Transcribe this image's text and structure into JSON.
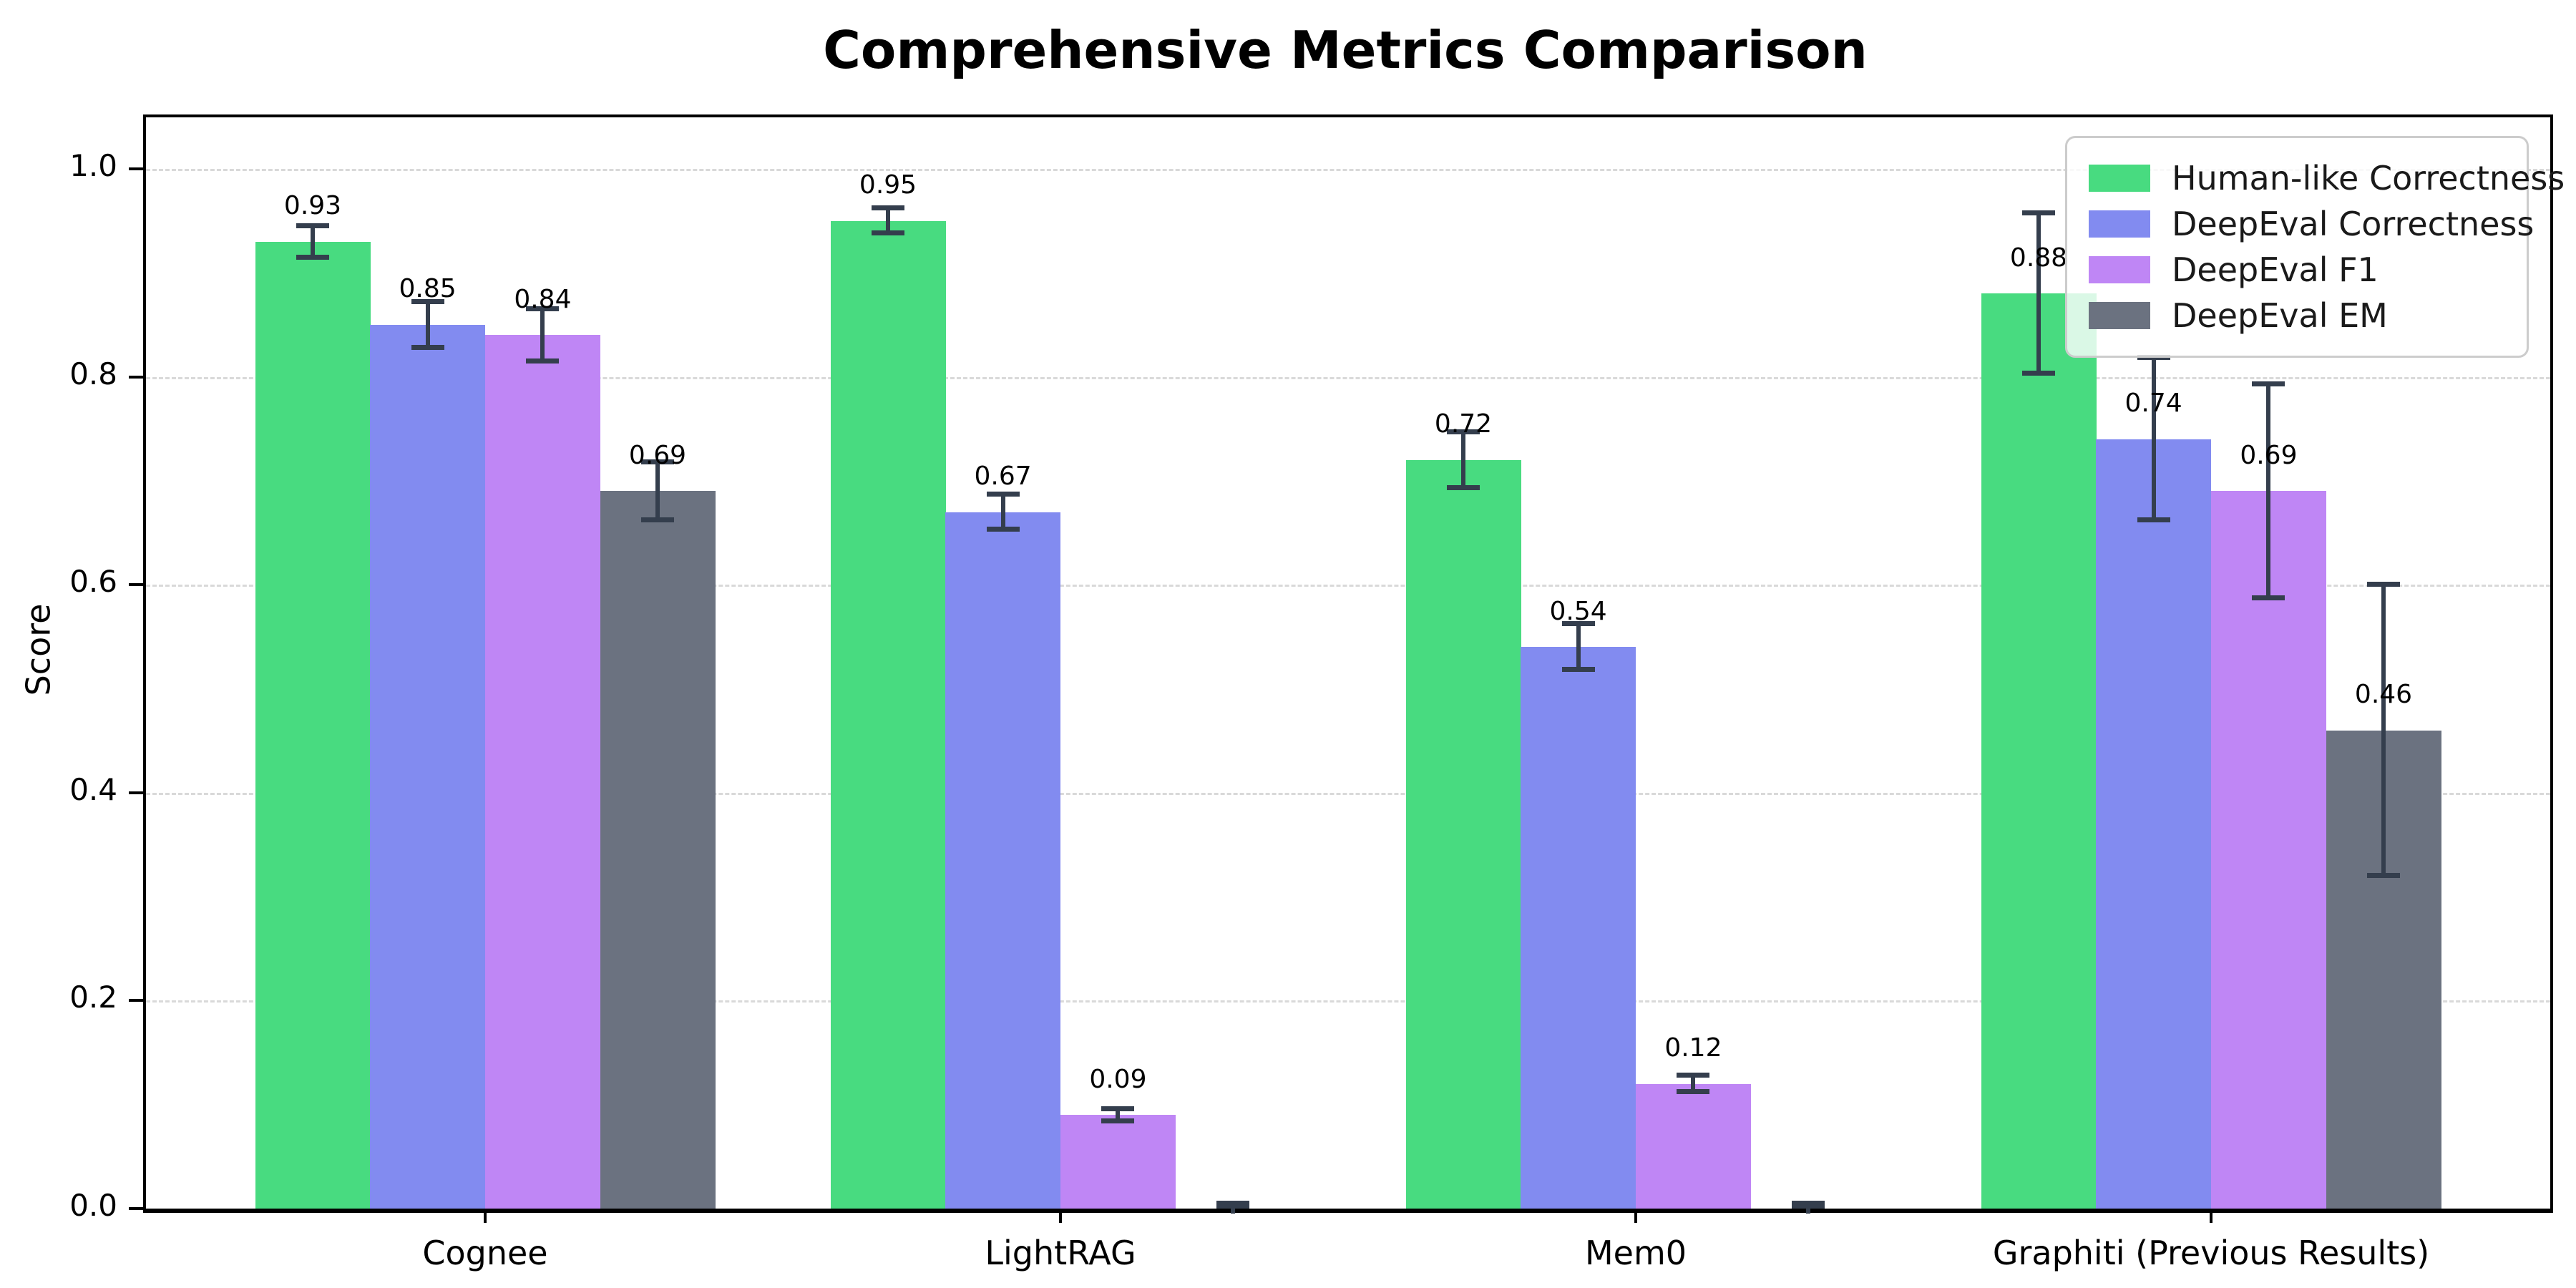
{
  "title": "Comprehensive Metrics Comparison",
  "y_axis": {
    "label": "Score",
    "ticks": [
      "0.0",
      "0.2",
      "0.4",
      "0.6",
      "0.8",
      "1.0"
    ],
    "tick_values": [
      0.0,
      0.2,
      0.4,
      0.6,
      0.8,
      1.0
    ]
  },
  "colors": {
    "human_like": "#48db80",
    "deepeval_correctness": "#828bf0",
    "deepeval_f1": "#bf86f5",
    "deepeval_em": "#6b7280",
    "error_bar": "#343e4d",
    "gridline": "#d9d9d9",
    "legend_border": "#cccccc"
  },
  "chart_data": {
    "type": "bar",
    "title": "Comprehensive Metrics Comparison",
    "xlabel": "",
    "ylabel": "Score",
    "ylim": [
      0,
      1.05
    ],
    "grid": "horizontal-dashed",
    "legend_position": "upper right",
    "categories": [
      "Cognee",
      "LightRAG",
      "Mem0",
      "Graphiti (Previous Results)"
    ],
    "series": [
      {
        "name": "Human-like Correctness",
        "color": "#48db80",
        "values": [
          0.93,
          0.95,
          0.72,
          0.88
        ],
        "errors": [
          0.015,
          0.012,
          0.027,
          0.077
        ],
        "labels": [
          "0.93",
          "0.95",
          "0.72",
          "0.88"
        ]
      },
      {
        "name": "DeepEval Correctness",
        "color": "#828bf0",
        "values": [
          0.85,
          0.67,
          0.54,
          0.74
        ],
        "errors": [
          0.022,
          0.017,
          0.022,
          0.078
        ],
        "labels": [
          "0.85",
          "0.67",
          "0.54",
          "0.74"
        ]
      },
      {
        "name": "DeepEval F1",
        "color": "#bf86f5",
        "values": [
          0.84,
          0.09,
          0.12,
          0.69
        ],
        "errors": [
          0.025,
          0.006,
          0.008,
          0.103
        ],
        "labels": [
          "0.84",
          "0.09",
          "0.12",
          "0.69"
        ]
      },
      {
        "name": "DeepEval EM",
        "color": "#6b7280",
        "values": [
          0.69,
          0.0,
          0.0,
          0.46
        ],
        "errors": [
          0.028,
          0.005,
          0.005,
          0.14
        ],
        "labels": [
          "0.69",
          "",
          "",
          "0.46"
        ]
      }
    ]
  }
}
